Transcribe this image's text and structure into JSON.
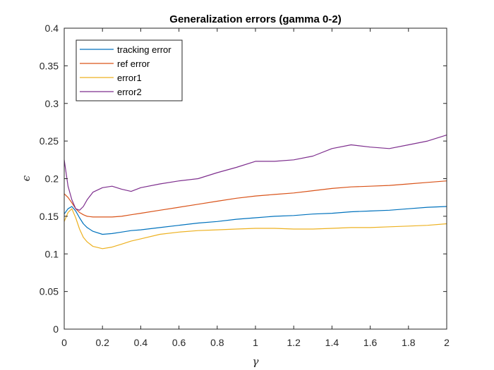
{
  "chart_data": {
    "type": "line",
    "title": "Generalization errors (gamma 0-2)",
    "xlabel": "γ",
    "ylabel": "ϵ",
    "xlim": [
      0,
      2
    ],
    "ylim": [
      0,
      0.4
    ],
    "xticks": [
      0,
      0.2,
      0.4,
      0.6,
      0.8,
      1,
      1.2,
      1.4,
      1.6,
      1.8,
      2
    ],
    "yticks": [
      0,
      0.05,
      0.1,
      0.15,
      0.2,
      0.25,
      0.3,
      0.35,
      0.4
    ],
    "legend_position": "top-left",
    "grid": false,
    "series": [
      {
        "name": "tracking error",
        "color": "#0072BD",
        "x": [
          0,
          0.02,
          0.04,
          0.06,
          0.08,
          0.1,
          0.12,
          0.15,
          0.2,
          0.25,
          0.3,
          0.35,
          0.4,
          0.5,
          0.6,
          0.7,
          0.8,
          0.9,
          1.0,
          1.1,
          1.2,
          1.3,
          1.4,
          1.5,
          1.6,
          1.7,
          1.8,
          1.9,
          2.0
        ],
        "values": [
          0.153,
          0.16,
          0.163,
          0.157,
          0.148,
          0.14,
          0.135,
          0.13,
          0.126,
          0.127,
          0.129,
          0.131,
          0.132,
          0.135,
          0.138,
          0.141,
          0.143,
          0.146,
          0.148,
          0.15,
          0.151,
          0.153,
          0.154,
          0.156,
          0.157,
          0.158,
          0.16,
          0.162,
          0.163
        ]
      },
      {
        "name": "ref error",
        "color": "#D95319",
        "x": [
          0,
          0.02,
          0.04,
          0.06,
          0.08,
          0.1,
          0.12,
          0.15,
          0.2,
          0.25,
          0.3,
          0.35,
          0.4,
          0.5,
          0.6,
          0.7,
          0.8,
          0.9,
          1.0,
          1.1,
          1.2,
          1.3,
          1.4,
          1.5,
          1.6,
          1.7,
          1.8,
          1.9,
          2.0
        ],
        "values": [
          0.18,
          0.175,
          0.168,
          0.16,
          0.155,
          0.152,
          0.15,
          0.149,
          0.149,
          0.149,
          0.15,
          0.152,
          0.154,
          0.158,
          0.162,
          0.166,
          0.17,
          0.174,
          0.177,
          0.179,
          0.181,
          0.184,
          0.187,
          0.189,
          0.19,
          0.191,
          0.193,
          0.195,
          0.197
        ]
      },
      {
        "name": "error1",
        "color": "#EDB120",
        "x": [
          0,
          0.02,
          0.04,
          0.06,
          0.08,
          0.1,
          0.12,
          0.15,
          0.2,
          0.25,
          0.3,
          0.35,
          0.4,
          0.5,
          0.6,
          0.7,
          0.8,
          0.9,
          1.0,
          1.1,
          1.2,
          1.3,
          1.4,
          1.5,
          1.6,
          1.7,
          1.8,
          1.9,
          2.0
        ],
        "values": [
          0.143,
          0.155,
          0.16,
          0.148,
          0.133,
          0.122,
          0.116,
          0.11,
          0.107,
          0.109,
          0.113,
          0.117,
          0.12,
          0.126,
          0.129,
          0.131,
          0.132,
          0.133,
          0.134,
          0.134,
          0.133,
          0.133,
          0.134,
          0.135,
          0.135,
          0.136,
          0.137,
          0.138,
          0.14
        ]
      },
      {
        "name": "error2",
        "color": "#7E2F8E",
        "x": [
          0,
          0.02,
          0.04,
          0.06,
          0.08,
          0.1,
          0.12,
          0.15,
          0.2,
          0.25,
          0.3,
          0.35,
          0.4,
          0.5,
          0.6,
          0.7,
          0.8,
          0.9,
          1.0,
          1.1,
          1.2,
          1.3,
          1.4,
          1.5,
          1.6,
          1.7,
          1.8,
          1.9,
          2.0
        ],
        "values": [
          0.225,
          0.19,
          0.172,
          0.16,
          0.158,
          0.163,
          0.172,
          0.182,
          0.188,
          0.19,
          0.186,
          0.183,
          0.188,
          0.193,
          0.197,
          0.2,
          0.208,
          0.215,
          0.223,
          0.223,
          0.225,
          0.23,
          0.24,
          0.245,
          0.242,
          0.24,
          0.245,
          0.25,
          0.258
        ]
      }
    ]
  }
}
